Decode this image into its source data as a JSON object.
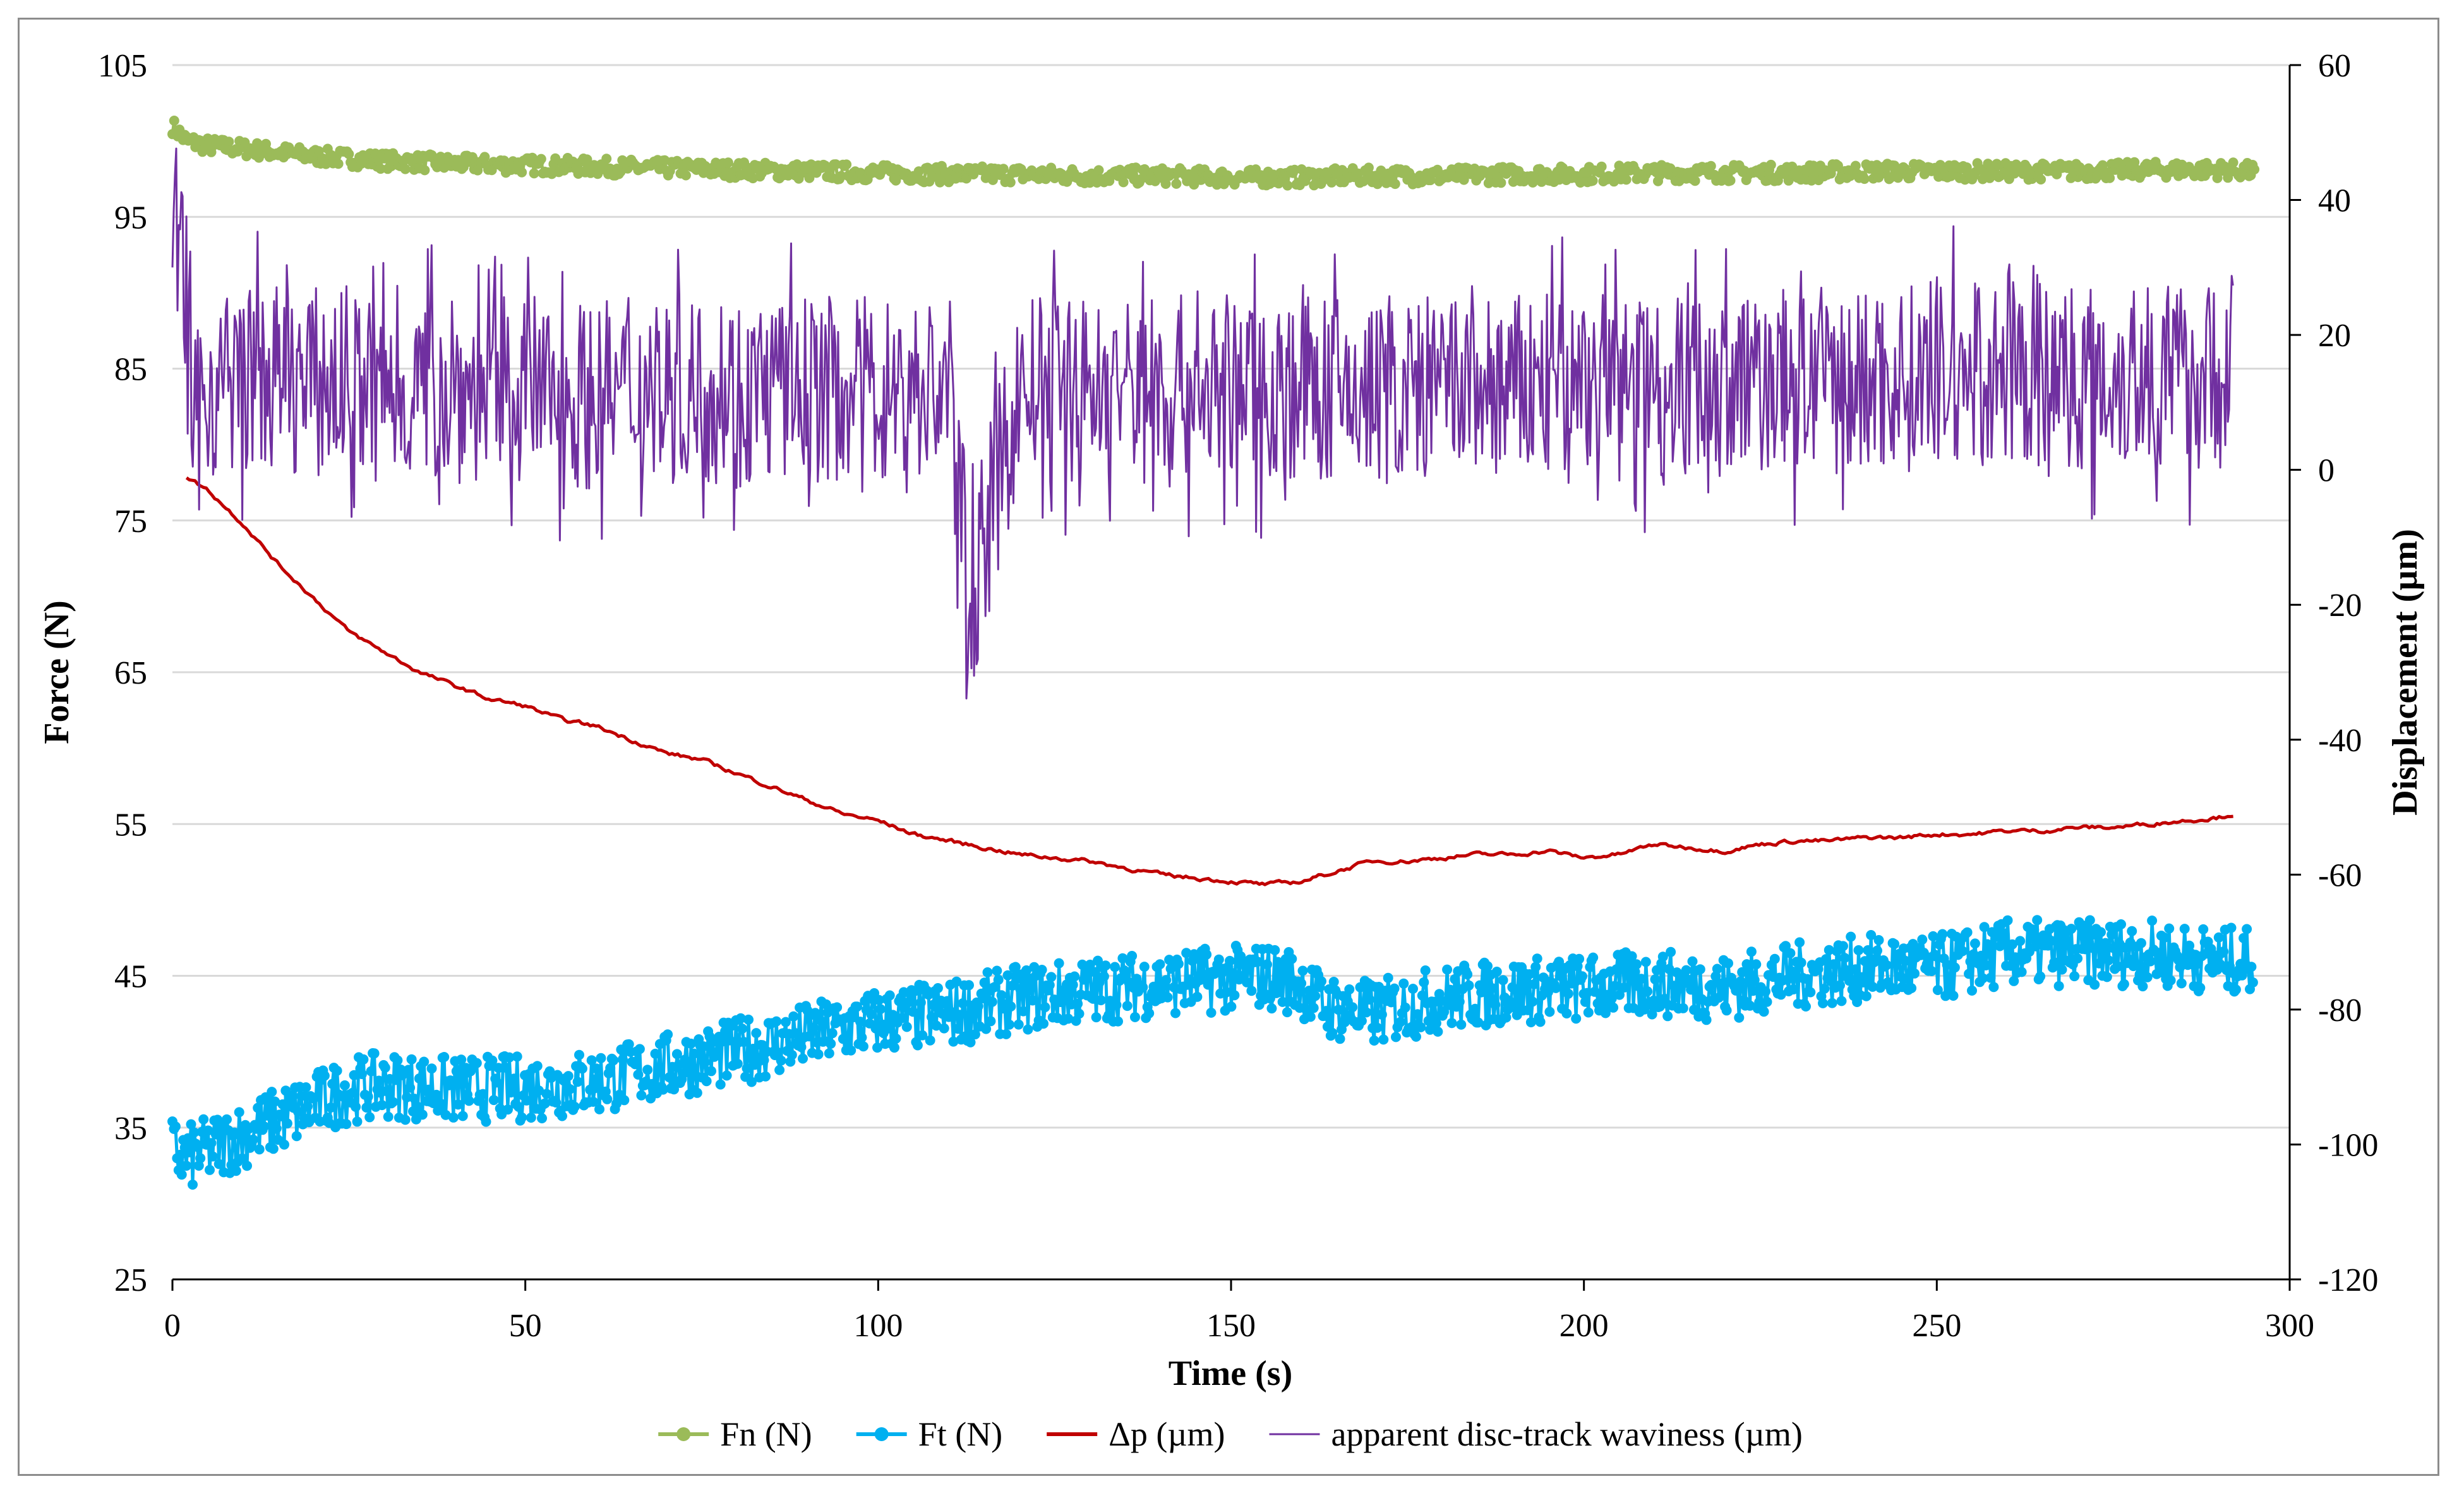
{
  "chart_data": {
    "type": "line",
    "title": "",
    "xlabel": "Time (s)",
    "ylabel": "Force (N)",
    "y2label": "Displacement (µm)",
    "xlim": [
      0,
      300
    ],
    "ylim": [
      25,
      105
    ],
    "y2lim": [
      -120,
      60
    ],
    "x_ticks": [
      "0",
      "50",
      "100",
      "150",
      "200",
      "250",
      "300"
    ],
    "y_ticks": [
      "105",
      "95",
      "85",
      "75",
      "65",
      "55",
      "45",
      "35",
      "25"
    ],
    "y2_ticks": [
      "60",
      "40",
      "20",
      "0",
      "-20",
      "-40",
      "-60",
      "-80",
      "-100",
      "-120"
    ],
    "grid": true,
    "legend_position": "bottom",
    "series": [
      {
        "name": "Fn (N)",
        "axis": "left",
        "color": "#9bbb59",
        "style": "line-with-markers",
        "x": [
          0,
          2,
          5,
          10,
          20,
          30,
          40,
          50,
          60,
          70,
          80,
          90,
          100,
          110,
          120,
          130,
          140,
          150,
          160,
          170,
          180,
          190,
          200,
          210,
          220,
          230,
          240,
          250,
          260,
          270,
          280,
          290,
          295
        ],
        "y": [
          101,
          100,
          99.7,
          99.5,
          99,
          98.7,
          98.5,
          98.4,
          98.3,
          98.2,
          98.1,
          98,
          97.9,
          97.8,
          97.8,
          97.7,
          97.7,
          97.6,
          97.6,
          97.7,
          97.7,
          97.8,
          97.8,
          97.9,
          97.9,
          97.9,
          98,
          98,
          98,
          98,
          98.1,
          98.1,
          98
        ]
      },
      {
        "name": "Ft (N)",
        "axis": "left",
        "color": "#00b0f0",
        "style": "line-with-markers",
        "x": [
          0,
          2,
          5,
          10,
          15,
          20,
          25,
          30,
          40,
          50,
          60,
          70,
          80,
          90,
          100,
          110,
          120,
          130,
          140,
          150,
          155,
          160,
          163,
          170,
          180,
          190,
          200,
          210,
          220,
          230,
          240,
          250,
          260,
          270,
          280,
          290,
          295
        ],
        "y": [
          33.5,
          33,
          33.5,
          34.5,
          35.5,
          36.5,
          37.5,
          37.8,
          37.5,
          37.6,
          38,
          39,
          40,
          41,
          42,
          42.5,
          43.5,
          44,
          44.5,
          44.8,
          45,
          44.5,
          43,
          42.5,
          43.5,
          44,
          44.2,
          44.5,
          44.2,
          45,
          45.5,
          45.5,
          46.5,
          46.5,
          46.5,
          46,
          46
        ]
      },
      {
        "name": "Δp (µm)",
        "axis": "right",
        "color": "#c00000",
        "style": "line",
        "x": [
          2,
          5,
          10,
          15,
          20,
          25,
          30,
          35,
          40,
          45,
          50,
          55,
          60,
          65,
          70,
          75,
          80,
          85,
          90,
          95,
          100,
          105,
          110,
          115,
          120,
          125,
          130,
          135,
          140,
          145,
          150,
          155,
          160,
          165,
          170,
          175,
          180,
          185,
          190,
          195,
          200,
          205,
          210,
          215,
          220,
          225,
          230,
          235,
          240,
          245,
          250,
          255,
          260,
          265,
          270,
          275,
          280,
          285,
          290,
          292
        ],
        "y": [
          -1,
          -3,
          -8,
          -14,
          -19,
          -24,
          -27,
          -30,
          -32,
          -34,
          -35,
          -37,
          -38,
          -40,
          -42,
          -43,
          -45,
          -47,
          -49,
          -51,
          -52,
          -54,
          -55,
          -56,
          -57,
          -57.5,
          -58,
          -59,
          -60,
          -60.5,
          -61,
          -61.5,
          -61,
          -59.5,
          -58,
          -58,
          -57.5,
          -57,
          -57,
          -56.5,
          -57.5,
          -57,
          -55.5,
          -56,
          -56.5,
          -55.5,
          -55,
          -55,
          -54.5,
          -54.5,
          -54,
          -54,
          -53.5,
          -53.5,
          -53,
          -53,
          -52.5,
          -52,
          -51.5,
          -51
        ]
      },
      {
        "name": "apparent disc-track waviness (µm)",
        "axis": "right",
        "color": "#7030a0",
        "style": "line",
        "x": [
          0,
          1,
          2,
          3,
          5,
          10,
          20,
          30,
          40,
          50,
          60,
          70,
          80,
          90,
          100,
          110,
          113,
          120,
          130,
          140,
          150,
          160,
          170,
          180,
          190,
          200,
          210,
          220,
          230,
          240,
          250,
          260,
          270,
          280,
          290,
          292
        ],
        "y": [
          30,
          37,
          20,
          5,
          12,
          14,
          13,
          12,
          12,
          12,
          11,
          12,
          12,
          12,
          12,
          12,
          -20,
          12,
          12,
          12,
          12,
          12,
          11,
          12,
          12,
          13,
          13,
          13,
          13,
          13,
          14,
          14,
          14,
          14,
          14,
          15
        ]
      }
    ]
  }
}
